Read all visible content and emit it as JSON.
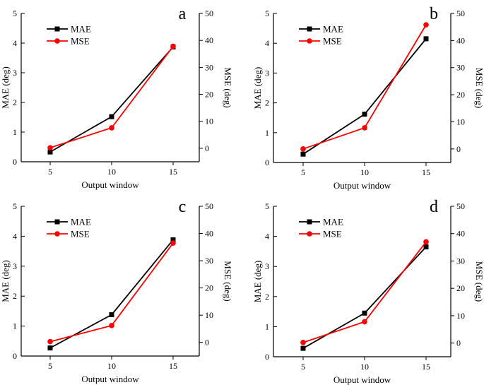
{
  "chart_data": [
    {
      "panel": "a",
      "type": "line",
      "xlabel": "Output window",
      "ylabel_left": "MAE (deg)",
      "ylabel_right": "MSE (deg)",
      "categories": [
        5,
        10,
        15
      ],
      "left_ylim": [
        0,
        5
      ],
      "left_ticks": [
        0,
        1,
        2,
        3,
        4,
        5
      ],
      "right_ylim": [
        -5,
        50
      ],
      "right_ticks": [
        0,
        10,
        20,
        30,
        40,
        50
      ],
      "legend_position": "top-left",
      "series": [
        {
          "name": "MAE",
          "axis": "left",
          "color": "#000000",
          "marker": "square",
          "values": [
            0.33,
            1.52,
            3.87
          ]
        },
        {
          "name": "MSE",
          "axis": "right",
          "color": "#ff0000",
          "marker": "circle",
          "values": [
            0.2,
            7.6,
            37.8
          ]
        }
      ]
    },
    {
      "panel": "b",
      "type": "line",
      "xlabel": "Output window",
      "ylabel_left": "MAE (deg)",
      "ylabel_right": "MSE (deg)",
      "categories": [
        5,
        10,
        15
      ],
      "left_ylim": [
        0,
        5
      ],
      "left_ticks": [
        0,
        1,
        2,
        3,
        4,
        5
      ],
      "right_ylim": [
        -5,
        50
      ],
      "right_ticks": [
        0,
        10,
        20,
        30,
        40,
        50
      ],
      "legend_position": "top-left",
      "series": [
        {
          "name": "MAE",
          "axis": "left",
          "color": "#000000",
          "marker": "square",
          "values": [
            0.28,
            1.62,
            4.15
          ]
        },
        {
          "name": "MSE",
          "axis": "right",
          "color": "#ff0000",
          "marker": "circle",
          "values": [
            0.0,
            7.8,
            45.8
          ]
        }
      ]
    },
    {
      "panel": "c",
      "type": "line",
      "xlabel": "Output window",
      "ylabel_left": "MAE (deg)",
      "ylabel_right": "MSE (deg)",
      "categories": [
        5,
        10,
        15
      ],
      "left_ylim": [
        0,
        5
      ],
      "left_ticks": [
        0,
        1,
        2,
        3,
        4,
        5
      ],
      "right_ylim": [
        -5,
        50
      ],
      "right_ticks": [
        0,
        10,
        20,
        30,
        40,
        50
      ],
      "legend_position": "top-left",
      "series": [
        {
          "name": "MAE",
          "axis": "left",
          "color": "#000000",
          "marker": "square",
          "values": [
            0.27,
            1.38,
            3.88
          ]
        },
        {
          "name": "MSE",
          "axis": "right",
          "color": "#ff0000",
          "marker": "circle",
          "values": [
            0.3,
            6.2,
            36.5
          ]
        }
      ]
    },
    {
      "panel": "d",
      "type": "line",
      "xlabel": "Output window",
      "ylabel_left": "MAE (deg)",
      "ylabel_right": "MSE (deg)",
      "categories": [
        5,
        10,
        15
      ],
      "left_ylim": [
        0,
        5
      ],
      "left_ticks": [
        0,
        1,
        2,
        3,
        4,
        5
      ],
      "right_ylim": [
        -5,
        50
      ],
      "right_ticks": [
        0,
        10,
        20,
        30,
        40,
        50
      ],
      "legend_position": "top-left",
      "series": [
        {
          "name": "MAE",
          "axis": "left",
          "color": "#000000",
          "marker": "square",
          "values": [
            0.28,
            1.45,
            3.65
          ]
        },
        {
          "name": "MSE",
          "axis": "right",
          "color": "#ff0000",
          "marker": "circle",
          "values": [
            0.2,
            7.8,
            37.0
          ]
        }
      ]
    }
  ]
}
